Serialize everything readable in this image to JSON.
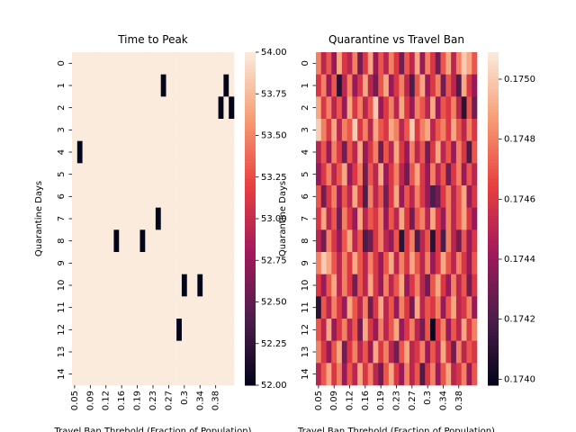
{
  "chart_data": [
    {
      "type": "heatmap",
      "title": "Time to Peak",
      "x_label": "Travel Ban Threhold (Fraction of Population)",
      "y_label": "Quarantine Days",
      "x_categories": [
        "0.05",
        null,
        null,
        "0.09",
        null,
        null,
        "0.12",
        null,
        null,
        "0.16",
        null,
        null,
        "0.19",
        null,
        null,
        "0.23",
        null,
        null,
        "0.27",
        null,
        null,
        "0.3",
        null,
        null,
        "0.34",
        null,
        null,
        "0.38",
        null,
        null,
        null
      ],
      "y_categories": [
        0,
        1,
        2,
        3,
        4,
        5,
        6,
        7,
        8,
        9,
        10,
        11,
        12,
        13,
        14
      ],
      "colormap": [
        "#03051a",
        "#4c1d4b",
        "#a11a5b",
        "#e83f3f",
        "#f69c73",
        "#faebdd"
      ],
      "clim": [
        52,
        54
      ],
      "cticks": [
        {
          "value": 52,
          "label": "52.00"
        },
        {
          "value": 52.25,
          "label": "52.25"
        },
        {
          "value": 52.5,
          "label": "52.50"
        },
        {
          "value": 52.75,
          "label": "52.75"
        },
        {
          "value": 53,
          "label": "53.00"
        },
        {
          "value": 53.25,
          "label": "53.25"
        },
        {
          "value": 53.5,
          "label": "53.50"
        },
        {
          "value": 53.75,
          "label": "53.75"
        },
        {
          "value": 54,
          "label": "54.00"
        }
      ],
      "values": [
        [
          54,
          54,
          54,
          54,
          54,
          54,
          54,
          54,
          54,
          54,
          54,
          54,
          54,
          54,
          54,
          54,
          54,
          54,
          54,
          54,
          54,
          54,
          54,
          54,
          54,
          54,
          54,
          54,
          54,
          54,
          54
        ],
        [
          54,
          54,
          54,
          54,
          54,
          54,
          54,
          54,
          54,
          54,
          54,
          54,
          54,
          54,
          54,
          54,
          54,
          52,
          54,
          54,
          54,
          54,
          54,
          54,
          54,
          54,
          54,
          54,
          54,
          52,
          54
        ],
        [
          54,
          54,
          54,
          54,
          54,
          54,
          54,
          54,
          54,
          54,
          54,
          54,
          54,
          54,
          54,
          54,
          54,
          54,
          54,
          54,
          54,
          54,
          54,
          54,
          54,
          54,
          54,
          54,
          52,
          54,
          52
        ],
        [
          54,
          54,
          54,
          54,
          54,
          54,
          54,
          54,
          54,
          54,
          54,
          54,
          54,
          54,
          54,
          54,
          54,
          54,
          54,
          54,
          54,
          54,
          54,
          54,
          54,
          54,
          54,
          54,
          54,
          54,
          54
        ],
        [
          54,
          52,
          54,
          54,
          54,
          54,
          54,
          54,
          54,
          54,
          54,
          54,
          54,
          54,
          54,
          54,
          54,
          54,
          54,
          54,
          54,
          54,
          54,
          54,
          54,
          54,
          54,
          54,
          54,
          54,
          54
        ],
        [
          54,
          54,
          54,
          54,
          54,
          54,
          54,
          54,
          54,
          54,
          54,
          54,
          54,
          54,
          54,
          54,
          54,
          54,
          54,
          54,
          54,
          54,
          54,
          54,
          54,
          54,
          54,
          54,
          54,
          54,
          54
        ],
        [
          54,
          54,
          54,
          54,
          54,
          54,
          54,
          54,
          54,
          54,
          54,
          54,
          54,
          54,
          54,
          54,
          54,
          54,
          54,
          54,
          54,
          54,
          54,
          54,
          54,
          54,
          54,
          54,
          54,
          54,
          54
        ],
        [
          54,
          54,
          54,
          54,
          54,
          54,
          54,
          54,
          54,
          54,
          54,
          54,
          54,
          54,
          54,
          54,
          52,
          54,
          54,
          54,
          54,
          54,
          54,
          54,
          54,
          54,
          54,
          54,
          54,
          54,
          54
        ],
        [
          54,
          54,
          54,
          54,
          54,
          54,
          54,
          54,
          52,
          54,
          54,
          54,
          54,
          52,
          54,
          54,
          54,
          54,
          54,
          54,
          54,
          54,
          54,
          54,
          54,
          54,
          54,
          54,
          54,
          54,
          54
        ],
        [
          54,
          54,
          54,
          54,
          54,
          54,
          54,
          54,
          54,
          54,
          54,
          54,
          54,
          54,
          54,
          54,
          54,
          54,
          54,
          54,
          54,
          54,
          54,
          54,
          54,
          54,
          54,
          54,
          54,
          54,
          54
        ],
        [
          54,
          54,
          54,
          54,
          54,
          54,
          54,
          54,
          54,
          54,
          54,
          54,
          54,
          54,
          54,
          54,
          54,
          54,
          54,
          54,
          54,
          52,
          54,
          54,
          52,
          54,
          54,
          54,
          54,
          54,
          54
        ],
        [
          54,
          54,
          54,
          54,
          54,
          54,
          54,
          54,
          54,
          54,
          54,
          54,
          54,
          54,
          54,
          54,
          54,
          54,
          54,
          54,
          54,
          54,
          54,
          54,
          54,
          54,
          54,
          54,
          54,
          54,
          54
        ],
        [
          54,
          54,
          54,
          54,
          54,
          54,
          54,
          54,
          54,
          54,
          54,
          54,
          54,
          54,
          54,
          54,
          54,
          54,
          54,
          54,
          52,
          54,
          54,
          54,
          54,
          54,
          54,
          54,
          54,
          54,
          54
        ],
        [
          54,
          54,
          54,
          54,
          54,
          54,
          54,
          54,
          54,
          54,
          54,
          54,
          54,
          54,
          54,
          54,
          54,
          54,
          54,
          54,
          54,
          54,
          54,
          54,
          54,
          54,
          54,
          54,
          54,
          54,
          54
        ],
        [
          54,
          54,
          54,
          54,
          54,
          54,
          54,
          54,
          54,
          54,
          54,
          54,
          54,
          54,
          54,
          54,
          54,
          54,
          54,
          54,
          54,
          54,
          54,
          54,
          54,
          54,
          54,
          54,
          54,
          54,
          54
        ]
      ]
    },
    {
      "type": "heatmap",
      "title": "Quarantine vs Travel Ban",
      "x_label": "Travel Ban Threhold (Fraction of Population)",
      "y_label": "Quarantine Days",
      "x_categories": [
        "0.05",
        null,
        null,
        "0.09",
        null,
        null,
        "0.12",
        null,
        null,
        "0.16",
        null,
        null,
        "0.19",
        null,
        null,
        "0.23",
        null,
        null,
        "0.27",
        null,
        null,
        "0.3",
        null,
        null,
        "0.34",
        null,
        null,
        "0.38",
        null,
        null,
        null
      ],
      "y_categories": [
        0,
        1,
        2,
        3,
        4,
        5,
        6,
        7,
        8,
        9,
        10,
        11,
        12,
        13,
        14
      ],
      "colormap": [
        "#03051a",
        "#4c1d4b",
        "#a11a5b",
        "#e83f3f",
        "#f69c73",
        "#faebdd"
      ],
      "clim": [
        0.17398,
        0.17509
      ],
      "cticks": [
        {
          "value": 0.174,
          "label": "0.1740"
        },
        {
          "value": 0.1742,
          "label": "0.1742"
        },
        {
          "value": 0.1744,
          "label": "0.1744"
        },
        {
          "value": 0.1746,
          "label": "0.1746"
        },
        {
          "value": 0.1748,
          "label": "0.1748"
        },
        {
          "value": 0.175,
          "label": "0.1750"
        }
      ],
      "values": [
        [
          0.1748,
          0.1745,
          0.1747,
          0.1744,
          0.1749,
          0.1746,
          0.1745,
          0.1748,
          0.1743,
          0.1746,
          0.1749,
          0.1744,
          0.1747,
          0.1745,
          0.1748,
          0.1746,
          0.1743,
          0.1747,
          0.1745,
          0.1749,
          0.1744,
          0.1748,
          0.1746,
          0.1743,
          0.1747,
          0.1749,
          0.1745,
          0.1748,
          0.175,
          0.1749,
          0.1747
        ],
        [
          0.1746,
          0.1748,
          0.1744,
          0.1747,
          0.1741,
          0.1745,
          0.1748,
          0.1744,
          0.1746,
          0.1749,
          0.1745,
          0.1743,
          0.1747,
          0.1749,
          0.1744,
          0.1746,
          0.1748,
          0.1745,
          0.1742,
          0.1747,
          0.1749,
          0.1744,
          0.1746,
          0.1748,
          0.1743,
          0.1747,
          0.1745,
          0.1742,
          0.1749,
          0.1746,
          0.1744
        ],
        [
          0.1749,
          0.1746,
          0.1748,
          0.1745,
          0.1747,
          0.1744,
          0.1749,
          0.1746,
          0.1748,
          0.1745,
          0.1747,
          0.175,
          0.1744,
          0.1746,
          0.1748,
          0.1745,
          0.1749,
          0.1746,
          0.1744,
          0.1748,
          0.1747,
          0.1745,
          0.1749,
          0.1744,
          0.1747,
          0.1746,
          0.1748,
          0.1745,
          0.1741,
          0.1747,
          0.1743
        ],
        [
          0.175,
          0.1748,
          0.1746,
          0.1749,
          0.1745,
          0.1748,
          0.1747,
          0.175,
          0.1746,
          0.1748,
          0.1745,
          0.1749,
          0.1747,
          0.1746,
          0.1749,
          0.1748,
          0.1745,
          0.1747,
          0.175,
          0.1746,
          0.1748,
          0.1749,
          0.1745,
          0.1747,
          0.1748,
          0.1746,
          0.1749,
          0.1747,
          0.1745,
          0.1748,
          0.1746
        ],
        [
          0.1745,
          0.1747,
          0.1744,
          0.1748,
          0.1746,
          0.1743,
          0.1747,
          0.1745,
          0.1749,
          0.1744,
          0.1746,
          0.1748,
          0.1743,
          0.1747,
          0.1745,
          0.1749,
          0.1746,
          0.1744,
          0.1748,
          0.1745,
          0.1747,
          0.1743,
          0.1746,
          0.1749,
          0.1745,
          0.1747,
          0.1744,
          0.1748,
          0.1746,
          0.1742,
          0.1747
        ],
        [
          0.1744,
          0.1746,
          0.1748,
          0.1745,
          0.1747,
          0.1749,
          0.1744,
          0.1746,
          0.1748,
          0.1743,
          0.1747,
          0.1745,
          0.1749,
          0.1744,
          0.1746,
          0.1748,
          0.1745,
          0.1743,
          0.1747,
          0.1749,
          0.1746,
          0.1744,
          0.1748,
          0.1745,
          0.1747,
          0.1743,
          0.1746,
          0.1748,
          0.1744,
          0.1747,
          0.1745
        ],
        [
          0.1747,
          0.1743,
          0.1746,
          0.1748,
          0.1744,
          0.1747,
          0.1745,
          0.1749,
          0.1746,
          0.1742,
          0.1748,
          0.1745,
          0.1747,
          0.1743,
          0.1746,
          0.1749,
          0.1744,
          0.1747,
          0.1745,
          0.1748,
          0.1746,
          0.1744,
          0.1742,
          0.1743,
          0.1746,
          0.1748,
          0.1745,
          0.1747,
          0.1749,
          0.1744,
          0.1746
        ],
        [
          0.1746,
          0.1749,
          0.1745,
          0.1747,
          0.1743,
          0.1748,
          0.1746,
          0.1744,
          0.1749,
          0.1745,
          0.1747,
          0.1746,
          0.1748,
          0.1744,
          0.1747,
          0.1745,
          0.1749,
          0.1746,
          0.1743,
          0.1747,
          0.1748,
          0.1745,
          0.1749,
          0.1746,
          0.1744,
          0.1748,
          0.1745,
          0.1747,
          0.1749,
          0.1746,
          0.1744
        ],
        [
          0.1745,
          0.1743,
          0.1748,
          0.1746,
          0.1744,
          0.1747,
          0.1749,
          0.1745,
          0.1747,
          0.1742,
          0.1743,
          0.1746,
          0.1748,
          0.1745,
          0.1744,
          0.1747,
          0.1741,
          0.1746,
          0.1748,
          0.1742,
          0.1745,
          0.1747,
          0.1741,
          0.1746,
          0.1742,
          0.1748,
          0.1745,
          0.1743,
          0.1747,
          0.1744,
          0.1746
        ],
        [
          0.1748,
          0.175,
          0.1749,
          0.1747,
          0.1745,
          0.1748,
          0.1746,
          0.1749,
          0.1747,
          0.1745,
          0.1748,
          0.1746,
          0.1744,
          0.1747,
          0.1749,
          0.1745,
          0.1748,
          0.1746,
          0.1749,
          0.1747,
          0.1745,
          0.1748,
          0.1744,
          0.1746,
          0.1749,
          0.1747,
          0.1745,
          0.1748,
          0.1746,
          0.1744,
          0.1747
        ],
        [
          0.1746,
          0.1744,
          0.1747,
          0.1749,
          0.1745,
          0.1748,
          0.1746,
          0.1743,
          0.1747,
          0.1745,
          0.1749,
          0.1746,
          0.1744,
          0.1748,
          0.1745,
          0.1747,
          0.1749,
          0.1744,
          0.1746,
          0.1748,
          0.1745,
          0.1743,
          0.1747,
          0.1749,
          0.1746,
          0.1744,
          0.1748,
          0.1745,
          0.1747,
          0.1743,
          0.1746
        ],
        [
          0.1741,
          0.1747,
          0.1745,
          0.1748,
          0.1746,
          0.1744,
          0.1749,
          0.1747,
          0.1745,
          0.1748,
          0.1743,
          0.1746,
          0.1749,
          0.1745,
          0.1747,
          0.1744,
          0.1748,
          0.1746,
          0.1743,
          0.1749,
          0.1745,
          0.1747,
          0.1746,
          0.1748,
          0.1744,
          0.1747,
          0.1749,
          0.1745,
          0.1746,
          0.1748,
          0.1744
        ],
        [
          0.1747,
          0.1745,
          0.1749,
          0.1744,
          0.1746,
          0.1748,
          0.1745,
          0.1747,
          0.1743,
          0.1749,
          0.1746,
          0.1744,
          0.1748,
          0.1745,
          0.1747,
          0.1749,
          0.1744,
          0.1746,
          0.1748,
          0.1745,
          0.1743,
          0.1747,
          0.174,
          0.1746,
          0.1748,
          0.1744,
          0.1747,
          0.1745,
          0.1749,
          0.1746,
          0.1748
        ],
        [
          0.1748,
          0.1746,
          0.1744,
          0.1747,
          0.1749,
          0.1743,
          0.1746,
          0.1748,
          0.1745,
          0.1747,
          0.1744,
          0.1749,
          0.1746,
          0.1748,
          0.1745,
          0.1743,
          0.1747,
          0.1749,
          0.1745,
          0.1746,
          0.1748,
          0.1744,
          0.1747,
          0.1745,
          0.1749,
          0.1746,
          0.1743,
          0.1748,
          0.1745,
          0.1747,
          0.1746
        ],
        [
          0.1745,
          0.1747,
          0.1749,
          0.1746,
          0.1748,
          0.1744,
          0.1747,
          0.1745,
          0.1749,
          0.1746,
          0.1748,
          0.1745,
          0.1743,
          0.1747,
          0.1749,
          0.1746,
          0.1744,
          0.1748,
          0.1745,
          0.1747,
          0.1742,
          0.1746,
          0.1748,
          0.1744,
          0.1747,
          0.1749,
          0.1745,
          0.1746,
          0.1748,
          0.1744,
          0.1747
        ]
      ]
    }
  ]
}
